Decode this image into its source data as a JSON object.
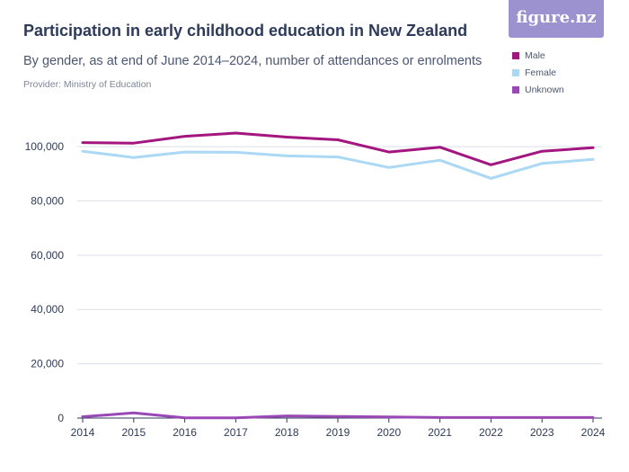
{
  "header": {
    "title": "Participation in early childhood education in New Zealand",
    "subtitle": "By gender, as at end of June 2014–2024, number of attendances or enrolments",
    "provider": "Provider: Ministry of Education",
    "logo": "figure.nz"
  },
  "chart_data": {
    "type": "line",
    "title": "Participation in early childhood education in New Zealand",
    "subtitle": "By gender, as at end of June 2014–2024, number of attendances or enrolments",
    "x": [
      2014,
      2015,
      2016,
      2017,
      2018,
      2019,
      2020,
      2021,
      2022,
      2023,
      2024
    ],
    "series": [
      {
        "name": "Male",
        "color": "#a3157f",
        "values": [
          101500,
          101300,
          103800,
          105000,
          103500,
          102500,
          98000,
          99800,
          93300,
          98300,
          99600
        ]
      },
      {
        "name": "Female",
        "color": "#aad8f5",
        "values": [
          98300,
          96000,
          98000,
          97900,
          96600,
          96200,
          92300,
          95000,
          88300,
          93800,
          95300
        ]
      },
      {
        "name": "Unknown",
        "color": "#9a48b5",
        "values": [
          500,
          1900,
          100,
          100,
          800,
          600,
          400,
          200,
          200,
          200,
          200
        ]
      }
    ],
    "yticks": [
      0,
      20000,
      40000,
      60000,
      80000,
      100000
    ],
    "ytick_labels": [
      "0",
      "20,000",
      "40,000",
      "60,000",
      "80,000",
      "100,000"
    ],
    "ylim": [
      0,
      105000
    ],
    "xlim": [
      2014,
      2024
    ],
    "grid": true,
    "legend_position": "top-right"
  }
}
